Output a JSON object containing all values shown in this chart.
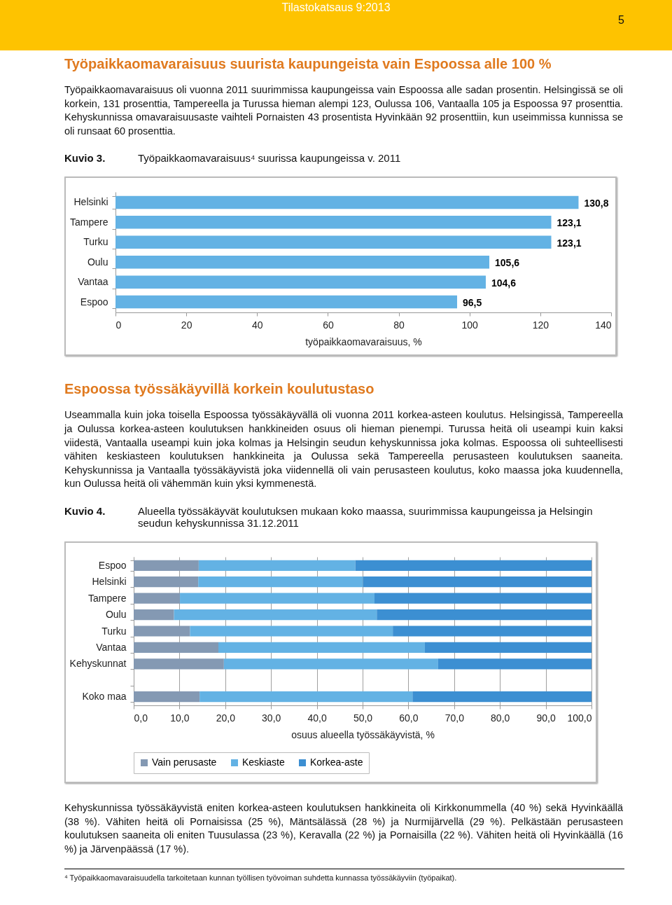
{
  "chart_data": [
    {
      "type": "bar",
      "orientation": "horizontal",
      "title": "Työpaikkaomavaraisuus⁴ suurissa kaupungeissa v. 2011",
      "xlabel": "työpaikkaomavaraisuus, %",
      "categories": [
        "Helsinki",
        "Tampere",
        "Turku",
        "Oulu",
        "Vantaa",
        "Espoo"
      ],
      "values": [
        130.8,
        123.1,
        123.1,
        105.6,
        104.6,
        96.5
      ],
      "value_labels": [
        "130,8",
        "123,1",
        "123,1",
        "105,6",
        "104,6",
        "96,5"
      ],
      "color": "#63b2e4",
      "xlim": [
        0,
        140
      ],
      "xticks": [
        0,
        20,
        40,
        60,
        80,
        100,
        120,
        140
      ],
      "grid": false,
      "legend": false,
      "annotations": [
        "Tilastokatsaus 9:2013",
        "5",
        "Työpaikkaomavaraisuus suurista kaupungeista vain Espoossa alle 100 %",
        "Työpaikkaomavaraisuus oli vuonna 2011 suurimmissa kaupungeissa vain Espoossa alle sadan prosentin. Helsingissä se oli korkein, 131 prosenttia, Tampereella ja Turussa hieman alempi 123, Oulussa 106, Vantaalla 105 ja Espoossa 97 prosenttia. Kehyskunnissa omavaraisuusaste vaihteli Pornaisten 43 prosentista Hyvinkään 92 prosenttiin, kun useimmissa kunnissa se oli runsaat 60 prosenttia.",
        "Kuvio 3."
      ]
    },
    {
      "type": "bar",
      "orientation": "horizontal",
      "stacked": true,
      "title": "Alueella työssäkäyvät koulutuksen mukaan koko maassa, suurimmissa kaupungeissa ja Helsingin seudun kehyskunnissa 31.12.2011",
      "xlabel": "osuus alueella työssäkäyvistä, %",
      "categories": [
        "Espoo",
        "Helsinki",
        "Tampere",
        "Oulu",
        "Turku",
        "Vantaa",
        "Kehyskunnat",
        null,
        "Koko maa"
      ],
      "series": [
        {
          "name": "Vain perusaste",
          "color": "#8499b3",
          "values": [
            14.2,
            14.1,
            10.1,
            8.8,
            12.3,
            18.5,
            19.7,
            null,
            14.4
          ]
        },
        {
          "name": "Keskiaste",
          "color": "#63b2e4",
          "values": [
            34.2,
            36.0,
            42.5,
            44.3,
            44.3,
            45.1,
            46.8,
            null,
            46.5
          ]
        },
        {
          "name": "Korkea-aste",
          "color": "#3c8fd2",
          "values": [
            51.6,
            49.9,
            47.4,
            46.9,
            43.4,
            36.4,
            33.5,
            null,
            39.1
          ]
        }
      ],
      "xlim": [
        0,
        100
      ],
      "xticks": [
        {
          "value": 0,
          "label": "0,0"
        },
        {
          "value": 10,
          "label": "10,0"
        },
        {
          "value": 20,
          "label": "20,0"
        },
        {
          "value": 30,
          "label": "30,0"
        },
        {
          "value": 40,
          "label": "40,0"
        },
        {
          "value": 50,
          "label": "50,0"
        },
        {
          "value": 60,
          "label": "60,0"
        },
        {
          "value": 70,
          "label": "70,0"
        },
        {
          "value": 80,
          "label": "80,0"
        },
        {
          "value": 90,
          "label": "90,0"
        },
        {
          "value": 100,
          "label": "100,0"
        }
      ],
      "grid": "x",
      "legend": "bottom",
      "annotations": [
        "Espoossa työssäkäyvillä korkein koulutustaso",
        "Useammalla kuin joka toisella Espoossa työssäkäyvällä oli vuonna 2011 korkea-asteen koulutus. Helsingissä, Tampereella ja Oulussa korkea-asteen koulutuksen hankkineiden osuus oli hieman pienempi. Turussa heitä oli useampi kuin kaksi viidestä, Vantaalla useampi kuin joka kolmas ja Helsingin seudun kehyskunnissa joka kolmas. Espoossa oli suhteellisesti vähiten keskiasteen koulutuksen hankkineita ja Oulussa sekä Tampereella perusasteen koulutuksen saaneita. Kehyskunnissa ja Vantaalla työssäkäyvistä joka viidennellä oli vain perusasteen koulutus, koko maassa joka kuudennella, kun Oulussa heitä oli vähemmän kuin yksi kymmenestä.",
        "Kuvio 4.",
        "Kehyskunnissa työssäkäyvistä eniten korkea-asteen koulutuksen hankkineita oli Kirkkonummella (40 %) sekä Hyvinkäällä (38 %). Vähiten heitä oli Pornaisissa (25 %), Mäntsälässä (28 %) ja Nurmijärvellä (29 %). Pelkästään perusasteen koulutuksen saaneita oli eniten Tuusulassa (23 %), Keravalla (22 %) ja Pornaisilla (22 %). Vähiten heitä oli Hyvinkäällä (16 %) ja Järvenpäässä (17 %).",
        "⁴ Työpaikkaomavaraisuudella tarkoitetaan kunnan työllisen työvoiman suhdetta kunnassa työssäkäyviin (työpaikat)."
      ]
    }
  ]
}
